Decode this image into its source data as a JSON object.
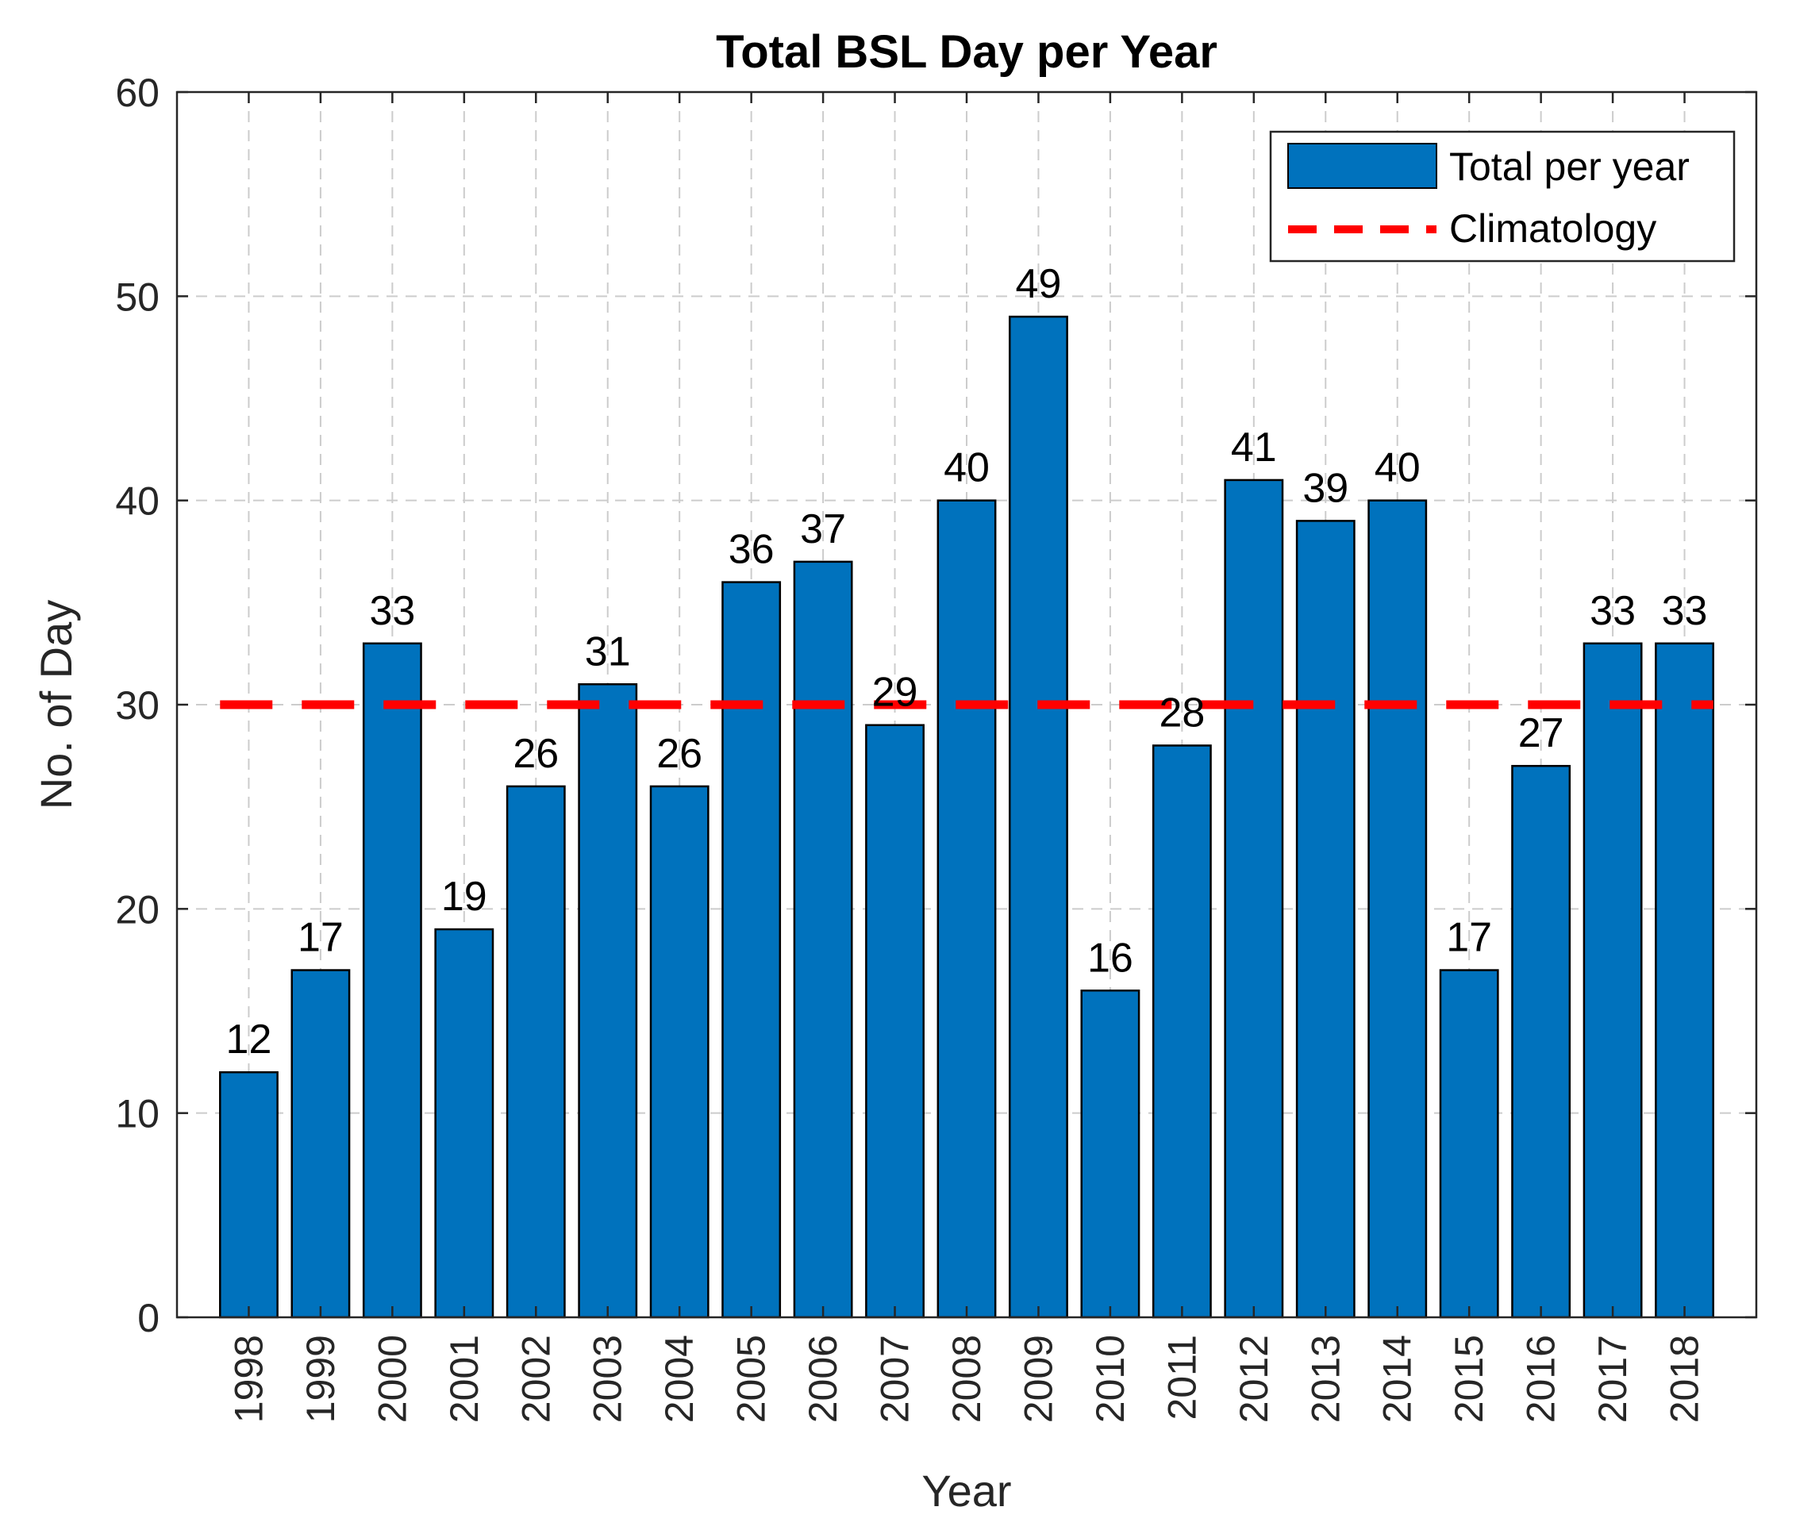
{
  "chart_data": {
    "type": "bar",
    "title": "Total BSL Day per Year",
    "xlabel": "Year",
    "ylabel": "No. of Day",
    "ylim": [
      0,
      60
    ],
    "yticks": [
      0,
      10,
      20,
      30,
      40,
      50,
      60
    ],
    "grid": true,
    "legend_position": "top-right",
    "categories": [
      "1998",
      "1999",
      "2000",
      "2001",
      "2002",
      "2003",
      "2004",
      "2005",
      "2006",
      "2007",
      "2008",
      "2009",
      "2010",
      "2011",
      "2012",
      "2013",
      "2014",
      "2015",
      "2016",
      "2017",
      "2018"
    ],
    "series": [
      {
        "name": "Total per year",
        "kind": "bar",
        "color": "#0072BD",
        "values": [
          12,
          17,
          33,
          19,
          26,
          31,
          26,
          36,
          37,
          29,
          40,
          49,
          16,
          28,
          41,
          39,
          40,
          17,
          27,
          33,
          33
        ]
      },
      {
        "name": "Climatology",
        "kind": "dashed-line",
        "color": "#FF0000",
        "value": 30
      }
    ]
  }
}
